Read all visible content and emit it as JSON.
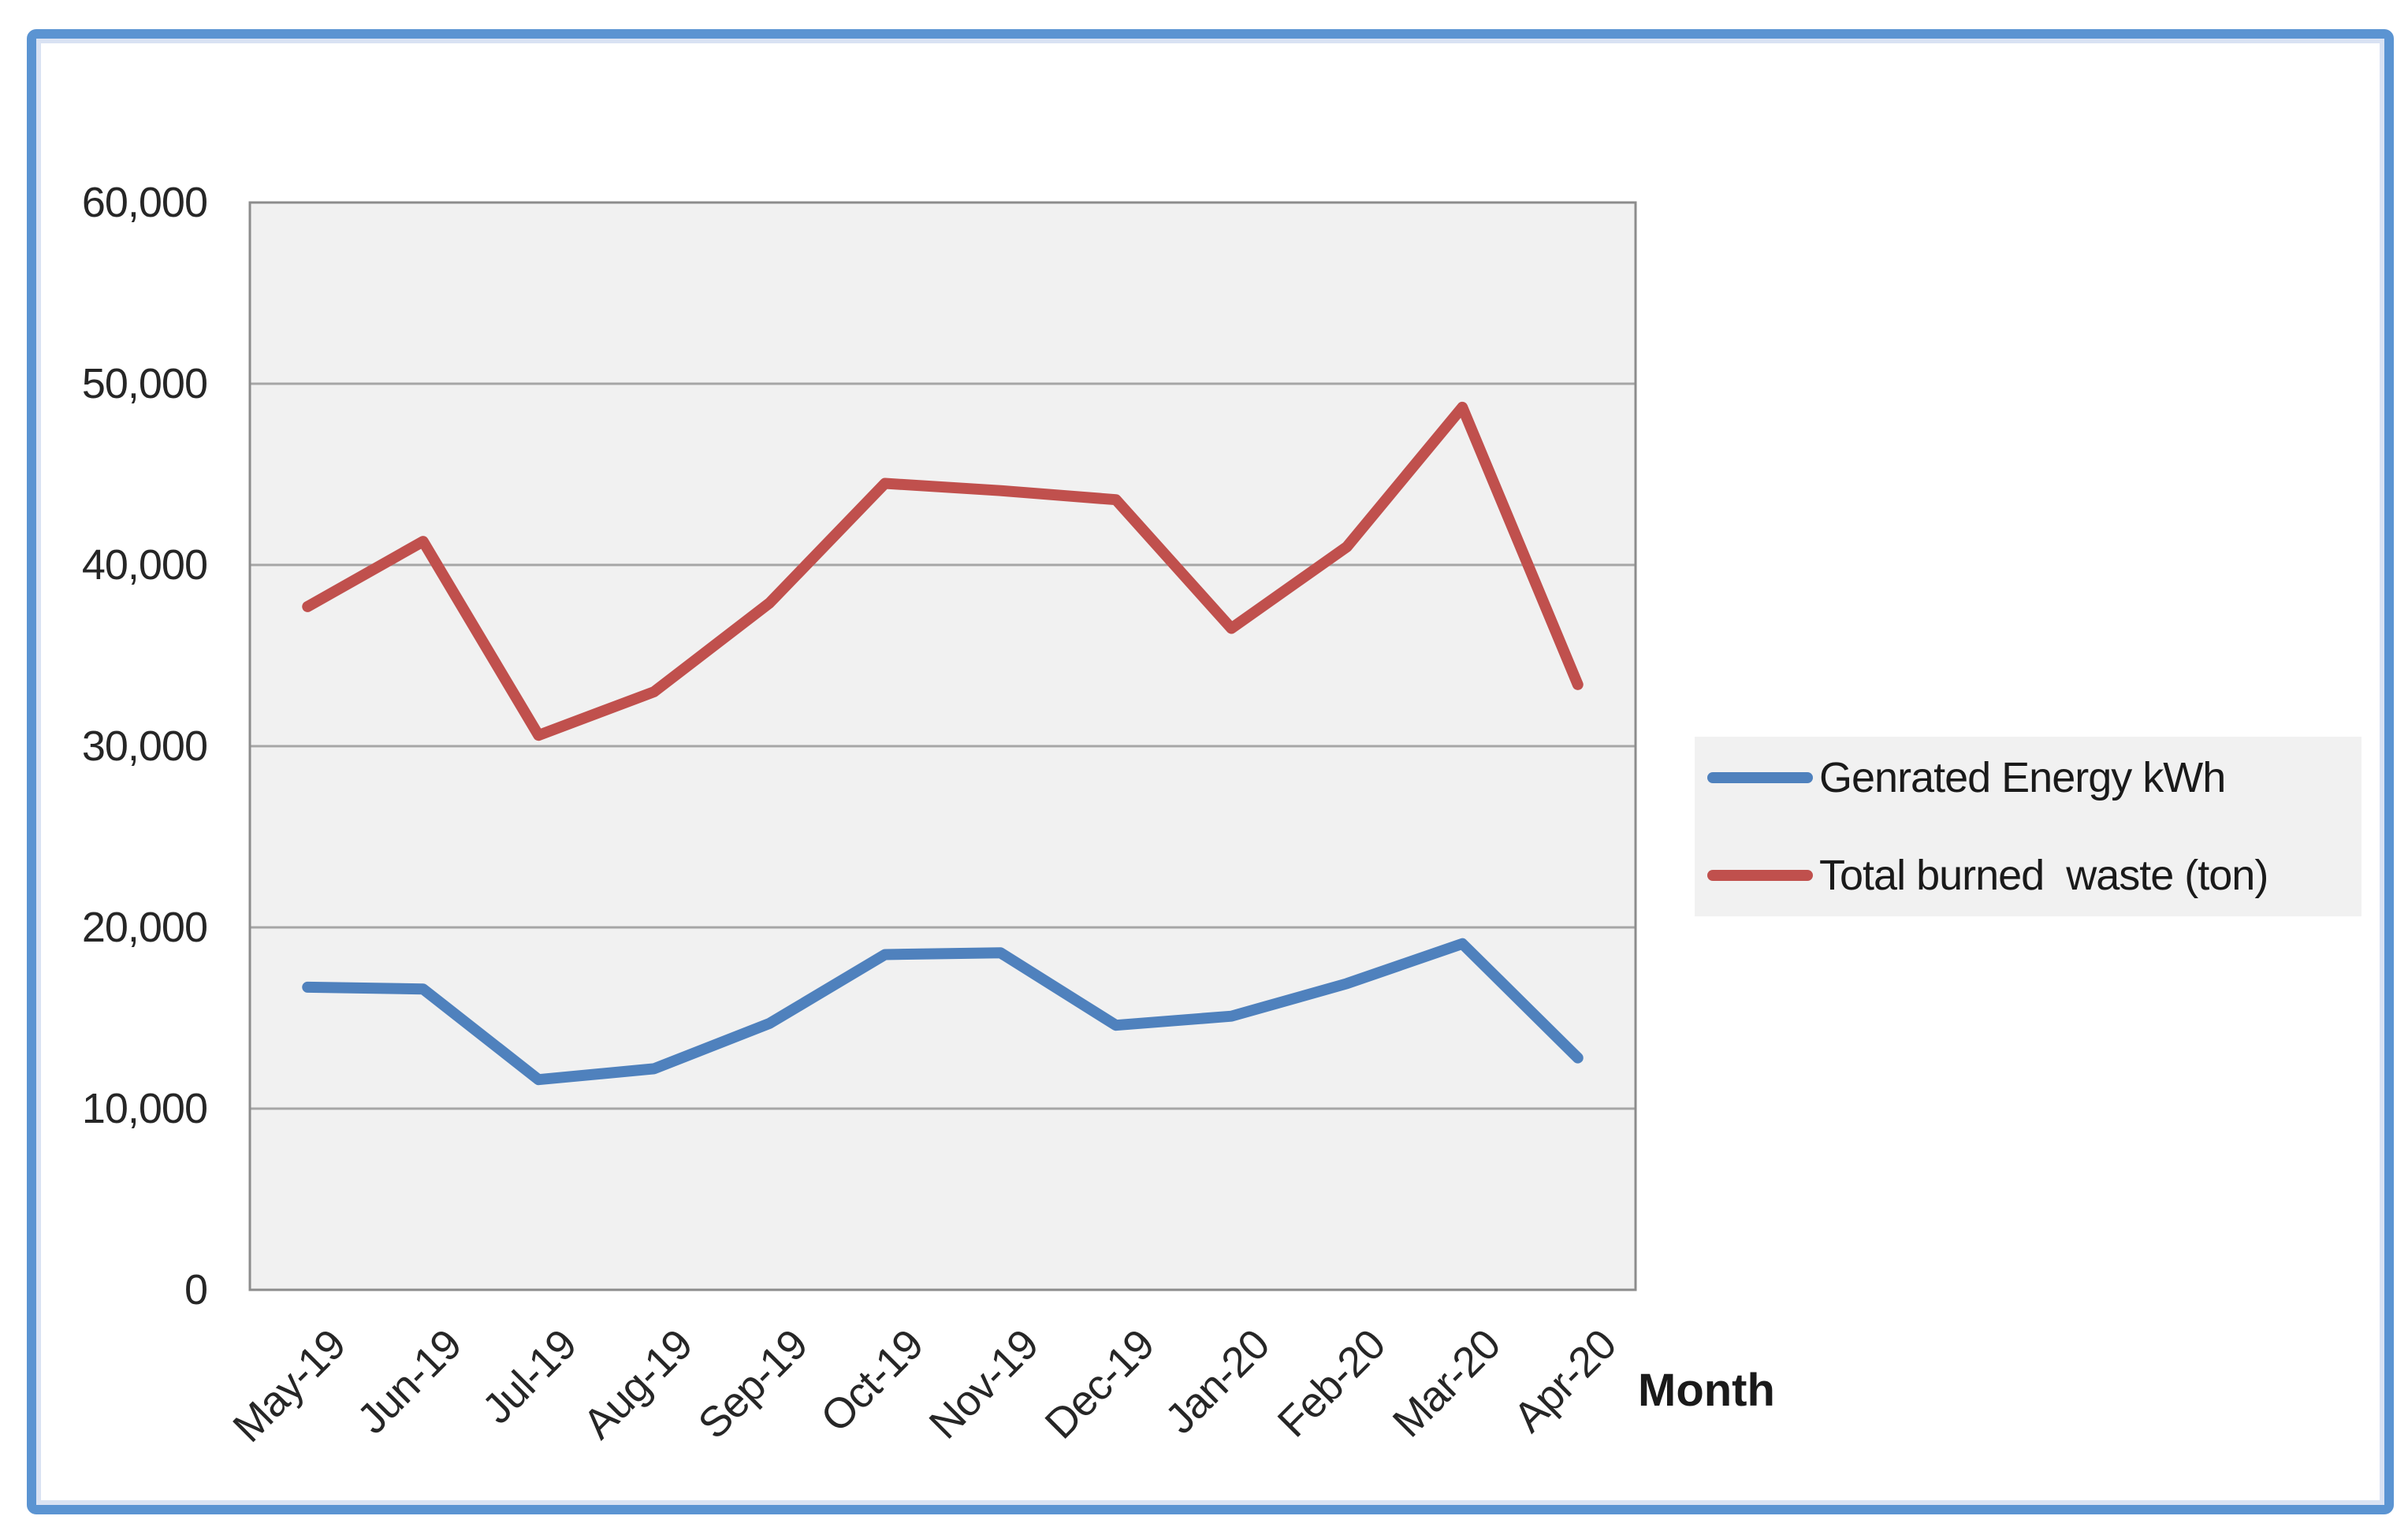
{
  "chart_data": {
    "type": "line",
    "title": "",
    "xlabel": "Month",
    "ylabel": "",
    "ylim": [
      0,
      60000
    ],
    "y_tick_step": 10000,
    "y_tick_labels": [
      "0",
      "10,000",
      "20,000",
      "30,000",
      "40,000",
      "50,000",
      "60,000"
    ],
    "grid": true,
    "legend_position": "right-middle",
    "categories": [
      "May-19",
      "Jun-19",
      "Jul-19",
      "Aug-19",
      "Sep-19",
      "Oct-19",
      "Nov-19",
      "Dec-19",
      "Jan-20",
      "Feb-20",
      "Mar-20",
      "Apr-20"
    ],
    "series": [
      {
        "name": "Genrated Energy kWh",
        "color": "#4F81BD",
        "values": [
          16700,
          16600,
          11600,
          12200,
          14700,
          18500,
          18600,
          14600,
          15100,
          16900,
          19100,
          12800
        ]
      },
      {
        "name": "Total burned  waste (ton)",
        "color": "#C0504D",
        "values": [
          37700,
          41300,
          30600,
          33000,
          37900,
          44500,
          44100,
          43600,
          36500,
          41000,
          48700,
          33400
        ]
      }
    ]
  },
  "colors": {
    "background": "#FFFFFF",
    "plot_background": "#F1F1F1",
    "gridline": "#A6A6A6",
    "plot_border": "#8C8C8C",
    "text": "#262626",
    "frame_border": "#5B94D2",
    "frame_border_inner": "#D9E2F3",
    "legend_background": "#F1F1F1"
  }
}
